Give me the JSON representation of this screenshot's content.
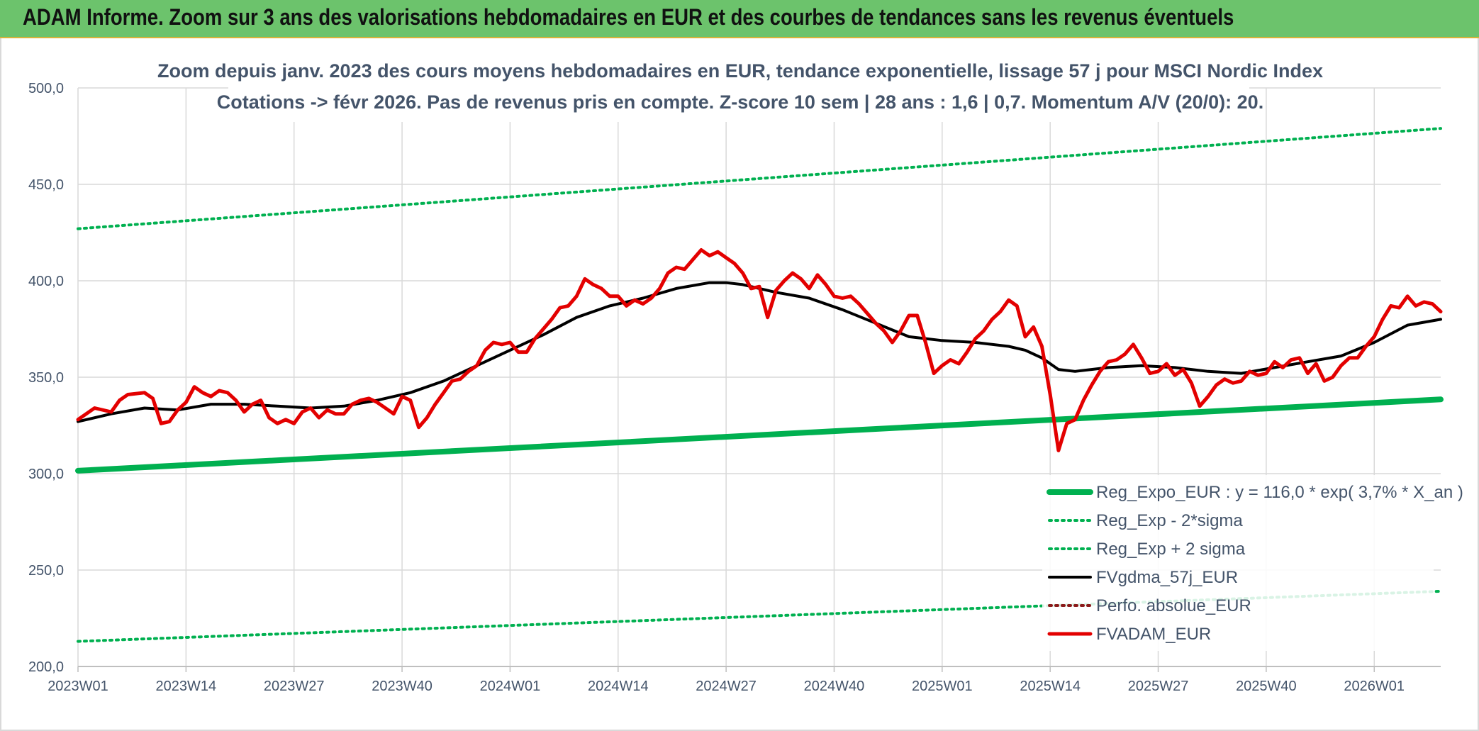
{
  "header": {
    "title": "ADAM Informe. Zoom sur 3 ans des valorisations hebdomadaires en EUR et des courbes de tendances sans les revenus éventuels"
  },
  "chart_data": {
    "type": "line",
    "title_line1": "Zoom depuis janv. 2023 des cours moyens hebdomadaires en EUR, tendance exponentielle, lissage 57 j pour MSCI Nordic Index",
    "title_line2": "Cotations -> févr 2026. Pas de revenus pris en compte. Z-score 10 sem | 28 ans : 1,6 | 0,7. Momentum A/V (20/0): 20.",
    "xlabel": "",
    "ylabel": "",
    "ylim": [
      200,
      500
    ],
    "yticks": [
      "500,0",
      "450,0",
      "400,0",
      "350,0",
      "300,0",
      "250,0",
      "200,0"
    ],
    "xlim": [
      0,
      164
    ],
    "xticks": [
      {
        "label": "2023W01",
        "x": 0
      },
      {
        "label": "2023W14",
        "x": 13
      },
      {
        "label": "2023W27",
        "x": 26
      },
      {
        "label": "2023W40",
        "x": 39
      },
      {
        "label": "2024W01",
        "x": 52
      },
      {
        "label": "2024W14",
        "x": 65
      },
      {
        "label": "2024W27",
        "x": 78
      },
      {
        "label": "2024W40",
        "x": 91
      },
      {
        "label": "2025W01",
        "x": 104
      },
      {
        "label": "2025W14",
        "x": 117
      },
      {
        "label": "2025W27",
        "x": 130
      },
      {
        "label": "2025W40",
        "x": 143
      },
      {
        "label": "2026W01",
        "x": 156
      }
    ],
    "grid": true,
    "legend_position": "bottom-right",
    "series": [
      {
        "name": "Reg_Expo_EUR : y = 116,0 * exp( 3,7% *  X_an )",
        "color": "#00b050",
        "style": "solid-thick",
        "x": [
          0,
          164
        ],
        "values": [
          301.5,
          338.5
        ]
      },
      {
        "name": "Reg_Exp - 2*sigma",
        "color": "#00b050",
        "style": "dotted",
        "x": [
          0,
          164
        ],
        "values": [
          213,
          239
        ]
      },
      {
        "name": "Reg_Exp + 2 sigma",
        "color": "#00b050",
        "style": "dotted",
        "x": [
          0,
          164
        ],
        "values": [
          427,
          479
        ]
      },
      {
        "name": "FVgdma_57j_EUR",
        "color": "#000000",
        "style": "solid",
        "x": [
          0,
          4,
          8,
          12,
          16,
          20,
          24,
          28,
          32,
          36,
          40,
          44,
          48,
          52,
          56,
          60,
          64,
          68,
          72,
          76,
          78,
          80,
          84,
          88,
          92,
          96,
          100,
          104,
          108,
          112,
          114,
          116,
          118,
          120,
          124,
          128,
          132,
          136,
          140,
          144,
          148,
          152,
          156,
          160,
          164
        ],
        "values": [
          327,
          331,
          334,
          333,
          336,
          336,
          335,
          334,
          335,
          338,
          342,
          348,
          356,
          364,
          372,
          381,
          387,
          391,
          396,
          399,
          399,
          398,
          394,
          391,
          385,
          378,
          371,
          369,
          368,
          366,
          364,
          360,
          354,
          353,
          355,
          356,
          355,
          353,
          352,
          355,
          358,
          361,
          368,
          377,
          380
        ]
      },
      {
        "name": "Perfo. absolue_EUR",
        "color": "#8b1a1a",
        "style": "dotted",
        "x": [],
        "values": []
      },
      {
        "name": "FVADAM_EUR",
        "color": "#e30000",
        "style": "solid-thick",
        "x": [
          0,
          2,
          4,
          5,
          6,
          8,
          9,
          10,
          11,
          12,
          13,
          14,
          15,
          16,
          17,
          18,
          19,
          20,
          21,
          22,
          23,
          24,
          25,
          26,
          27,
          28,
          29,
          30,
          31,
          32,
          33,
          34,
          35,
          36,
          37,
          38,
          39,
          40,
          41,
          42,
          43,
          44,
          45,
          46,
          47,
          48,
          49,
          50,
          51,
          52,
          53,
          54,
          55,
          56,
          57,
          58,
          59,
          60,
          61,
          62,
          63,
          64,
          65,
          66,
          67,
          68,
          69,
          70,
          71,
          72,
          73,
          74,
          75,
          76,
          77,
          78,
          79,
          80,
          81,
          82,
          83,
          84,
          85,
          86,
          87,
          88,
          89,
          90,
          91,
          92,
          93,
          94,
          95,
          96,
          97,
          98,
          99,
          100,
          101,
          102,
          103,
          104,
          105,
          106,
          107,
          108,
          109,
          110,
          111,
          112,
          113,
          114,
          115,
          116,
          117,
          118,
          119,
          120,
          121,
          122,
          123,
          124,
          125,
          126,
          127,
          128,
          129,
          130,
          131,
          132,
          133,
          134,
          135,
          136,
          137,
          138,
          139,
          140,
          141,
          142,
          143,
          144,
          145,
          146,
          147,
          148,
          149,
          150,
          151,
          152,
          153,
          154,
          155,
          156,
          157,
          158,
          159,
          160,
          161,
          162,
          163,
          164
        ],
        "values": [
          328,
          334,
          332,
          338,
          341,
          342,
          339,
          326,
          327,
          333,
          337,
          345,
          342,
          340,
          343,
          342,
          338,
          332,
          336,
          338,
          329,
          326,
          328,
          326,
          332,
          334,
          329,
          333,
          331,
          331,
          336,
          338,
          339,
          337,
          334,
          331,
          340,
          338,
          324,
          329,
          336,
          342,
          348,
          349,
          353,
          356,
          364,
          368,
          367,
          368,
          363,
          363,
          370,
          375,
          380,
          386,
          387,
          392,
          401,
          398,
          396,
          392,
          392,
          387,
          390,
          388,
          391,
          396,
          404,
          407,
          406,
          411,
          416,
          413,
          415,
          412,
          409,
          404,
          396,
          397,
          381,
          395,
          400,
          404,
          401,
          396,
          403,
          398,
          392,
          391,
          392,
          388,
          383,
          378,
          374,
          368,
          374,
          382,
          382,
          368,
          352,
          356,
          359,
          357,
          363,
          370,
          374,
          380,
          384,
          390,
          387,
          371,
          376,
          366,
          341,
          312,
          326,
          328,
          338,
          346,
          353,
          358,
          359,
          362,
          367,
          360,
          352,
          353,
          357,
          351,
          354,
          347,
          335,
          340,
          346,
          349,
          347,
          348,
          353,
          351,
          352,
          358,
          355,
          359,
          360,
          352,
          357,
          348,
          350,
          356,
          360,
          360,
          366,
          371,
          380,
          387,
          386,
          392,
          387,
          389,
          388,
          384
        ]
      }
    ]
  }
}
